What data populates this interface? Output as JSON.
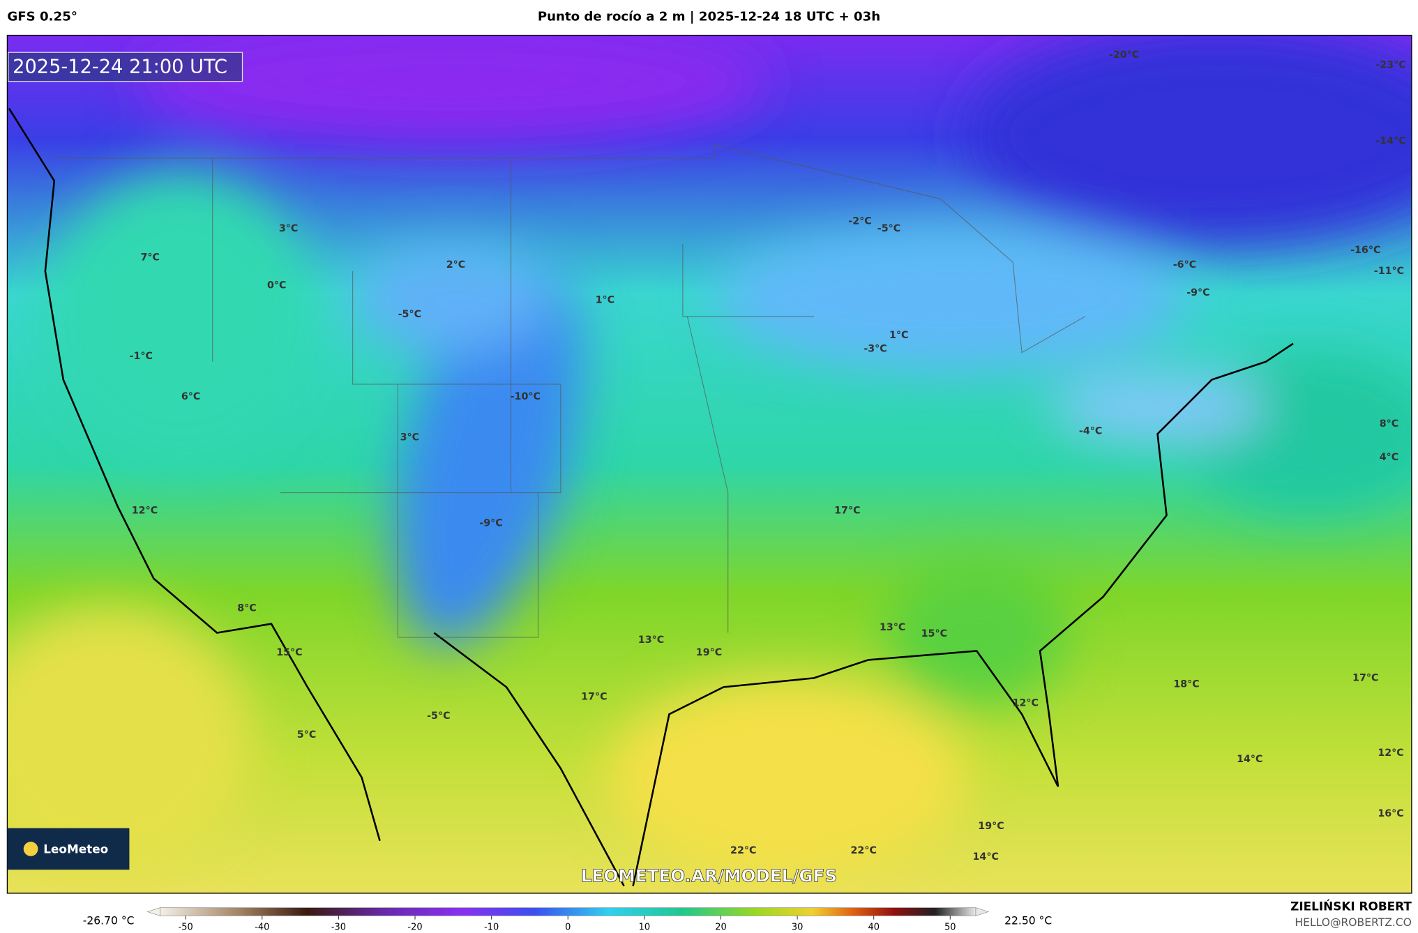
{
  "header": {
    "model": "GFS 0.25°",
    "title": "Punto de rocío a 2 m | 2025-12-24 18 UTC + 03h"
  },
  "map": {
    "timestamp": "2025-12-24 21:00 UTC",
    "labels": [
      "-20°C",
      "-23°C",
      "-14°C",
      "-2°C",
      "-5°C",
      "3°C",
      "2°C",
      "7°C",
      "0°C",
      "-16°C",
      "-6°C",
      "-11°C",
      "1°C",
      "-9°C",
      "-5°C",
      "1°C",
      "-3°C",
      "-1°C",
      "6°C",
      "-10°C",
      "3°C",
      "-4°C",
      "8°C",
      "4°C",
      "12°C",
      "17°C",
      "-9°C",
      "8°C",
      "15°C",
      "13°C",
      "19°C",
      "13°C",
      "15°C",
      "17°C",
      "18°C",
      "17°C",
      "12°C",
      "-5°C",
      "5°C",
      "14°C",
      "12°C",
      "16°C",
      "19°C",
      "22°C",
      "22°C",
      "14°C"
    ],
    "logo": "LeoMeteo",
    "watermark": "LEOMETEO.AR/MODEL/GFS"
  },
  "colorbar": {
    "min_label": "-26.70 °C",
    "max_label": "22.50 °C",
    "lim": [
      -55,
      55
    ],
    "ticks": [
      -50,
      -40,
      -30,
      -20,
      -10,
      0,
      10,
      20,
      30,
      40,
      50
    ]
  },
  "footer": {
    "author": "ZIELIŃSKI ROBERT",
    "email": "HELLO@ROBERTZ.CO"
  }
}
